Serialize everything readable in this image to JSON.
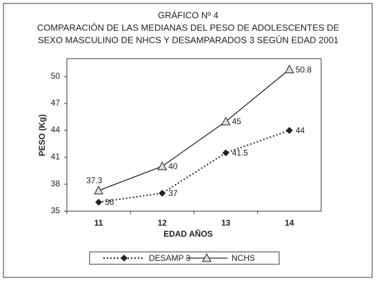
{
  "chart_data": {
    "type": "line",
    "title": "GRÁFICO Nº 4",
    "subtitle": [
      "COMPARACIÓN DE LAS MEDIANAS DEL PESO DE ADOLESCENTES DE",
      "SEXO MASCULINO DE NHCS Y DESAMPARADOS 3 SEGÚN EDAD 2001"
    ],
    "x_label": "EDAD AÑOS",
    "y_label": "PESO (Kg)",
    "categories": [
      "11",
      "12",
      "13",
      "14"
    ],
    "series": [
      {
        "name": "DESAMP 3",
        "color": "#222222",
        "line_style": "dotted",
        "marker": "diamond",
        "values": [
          36,
          37,
          41.5,
          44
        ]
      },
      {
        "name": "NCHS",
        "color": "#222222",
        "line_style": "solid",
        "marker": "triangle",
        "values": [
          37.3,
          40,
          45,
          50.8
        ]
      }
    ],
    "ylim": [
      35,
      52
    ],
    "yticks": [
      35,
      38,
      41,
      44,
      47,
      50
    ],
    "grid": false,
    "legend": "bottom"
  }
}
